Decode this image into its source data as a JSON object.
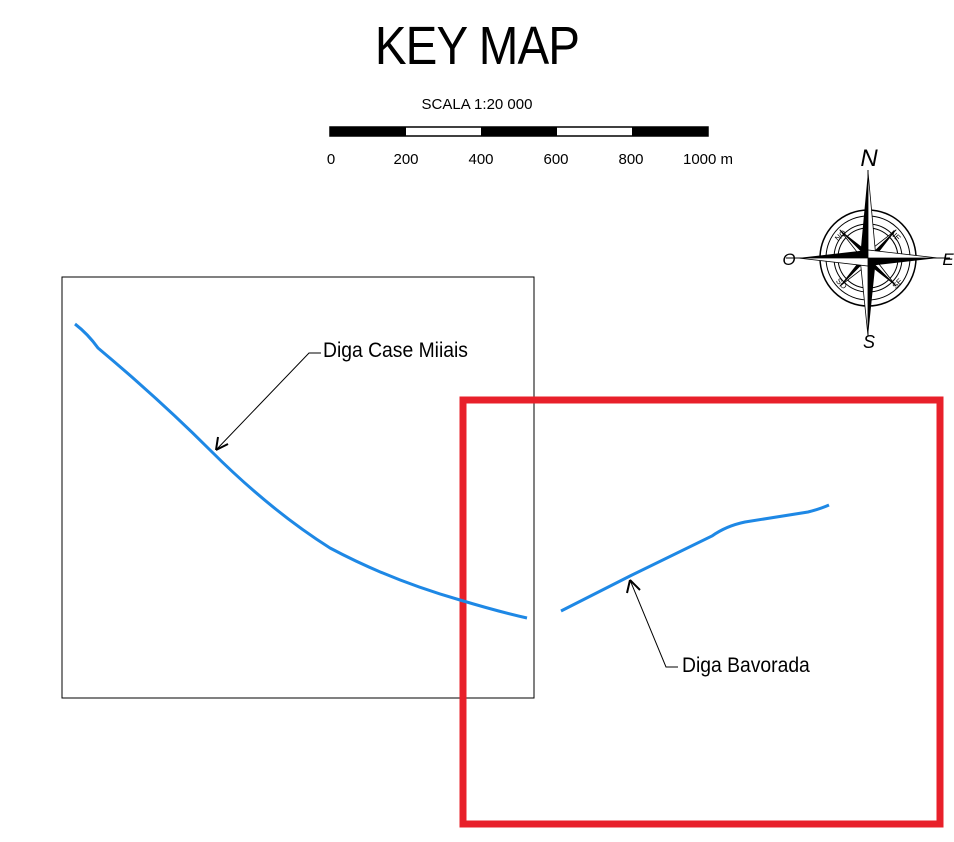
{
  "title": "KEY MAP",
  "scale": {
    "label": "SCALA 1:20 000",
    "ticks": [
      "0",
      "200",
      "400",
      "600",
      "800",
      "1000 m"
    ]
  },
  "compass": {
    "north": "N",
    "south": "S",
    "east": "E",
    "west": "O",
    "intercardinal": [
      "NO",
      "NE",
      "SO",
      "SE"
    ]
  },
  "features": {
    "dam_left_label": "Diga Case Miiais",
    "dam_right_label": "Diga Bavorada"
  },
  "colors": {
    "dam_line": "#1e88e5",
    "highlight_frame": "#e8202a",
    "frame": "#000000"
  }
}
